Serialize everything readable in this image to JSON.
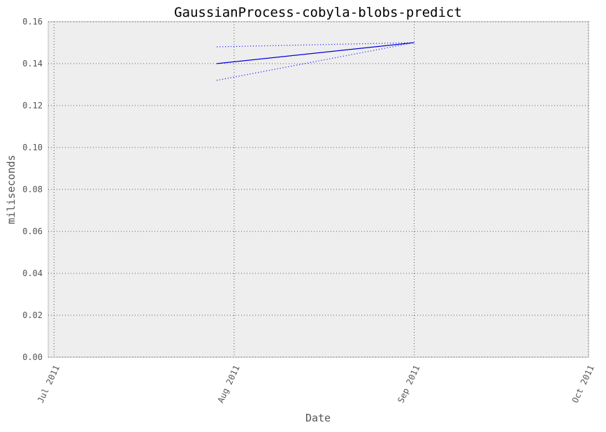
{
  "chart_data": {
    "type": "line",
    "title": "GaussianProcess-cobyla-blobs-predict",
    "xlabel": "Date",
    "ylabel": "miliseconds",
    "xlim": [
      "2011-06-30",
      "2011-10-01"
    ],
    "ylim": [
      0.0,
      0.16
    ],
    "x_ticks": [
      "2011-07-01",
      "2011-08-01",
      "2011-09-01",
      "2011-10-01"
    ],
    "x_tick_labels": [
      "Jul 2011",
      "Aug 2011",
      "Sep 2011",
      "Oct 2011"
    ],
    "y_ticks": [
      0.0,
      0.02,
      0.04,
      0.06,
      0.08,
      0.1,
      0.12,
      0.14,
      0.16
    ],
    "y_tick_labels": [
      "0.00",
      "0.02",
      "0.04",
      "0.06",
      "0.08",
      "0.10",
      "0.12",
      "0.14",
      "0.16"
    ],
    "grid": true,
    "series": [
      {
        "style": "solid",
        "color": "#0000dd",
        "x": [
          "2011-07-29",
          "2011-09-01"
        ],
        "y": [
          0.14,
          0.15
        ]
      },
      {
        "style": "dotted",
        "color": "#2222ff",
        "x": [
          "2011-07-29",
          "2011-09-01"
        ],
        "y": [
          0.148,
          0.15
        ]
      },
      {
        "style": "dotted",
        "color": "#2222ff",
        "x": [
          "2011-07-29",
          "2011-09-01"
        ],
        "y": [
          0.132,
          0.15
        ]
      }
    ]
  }
}
